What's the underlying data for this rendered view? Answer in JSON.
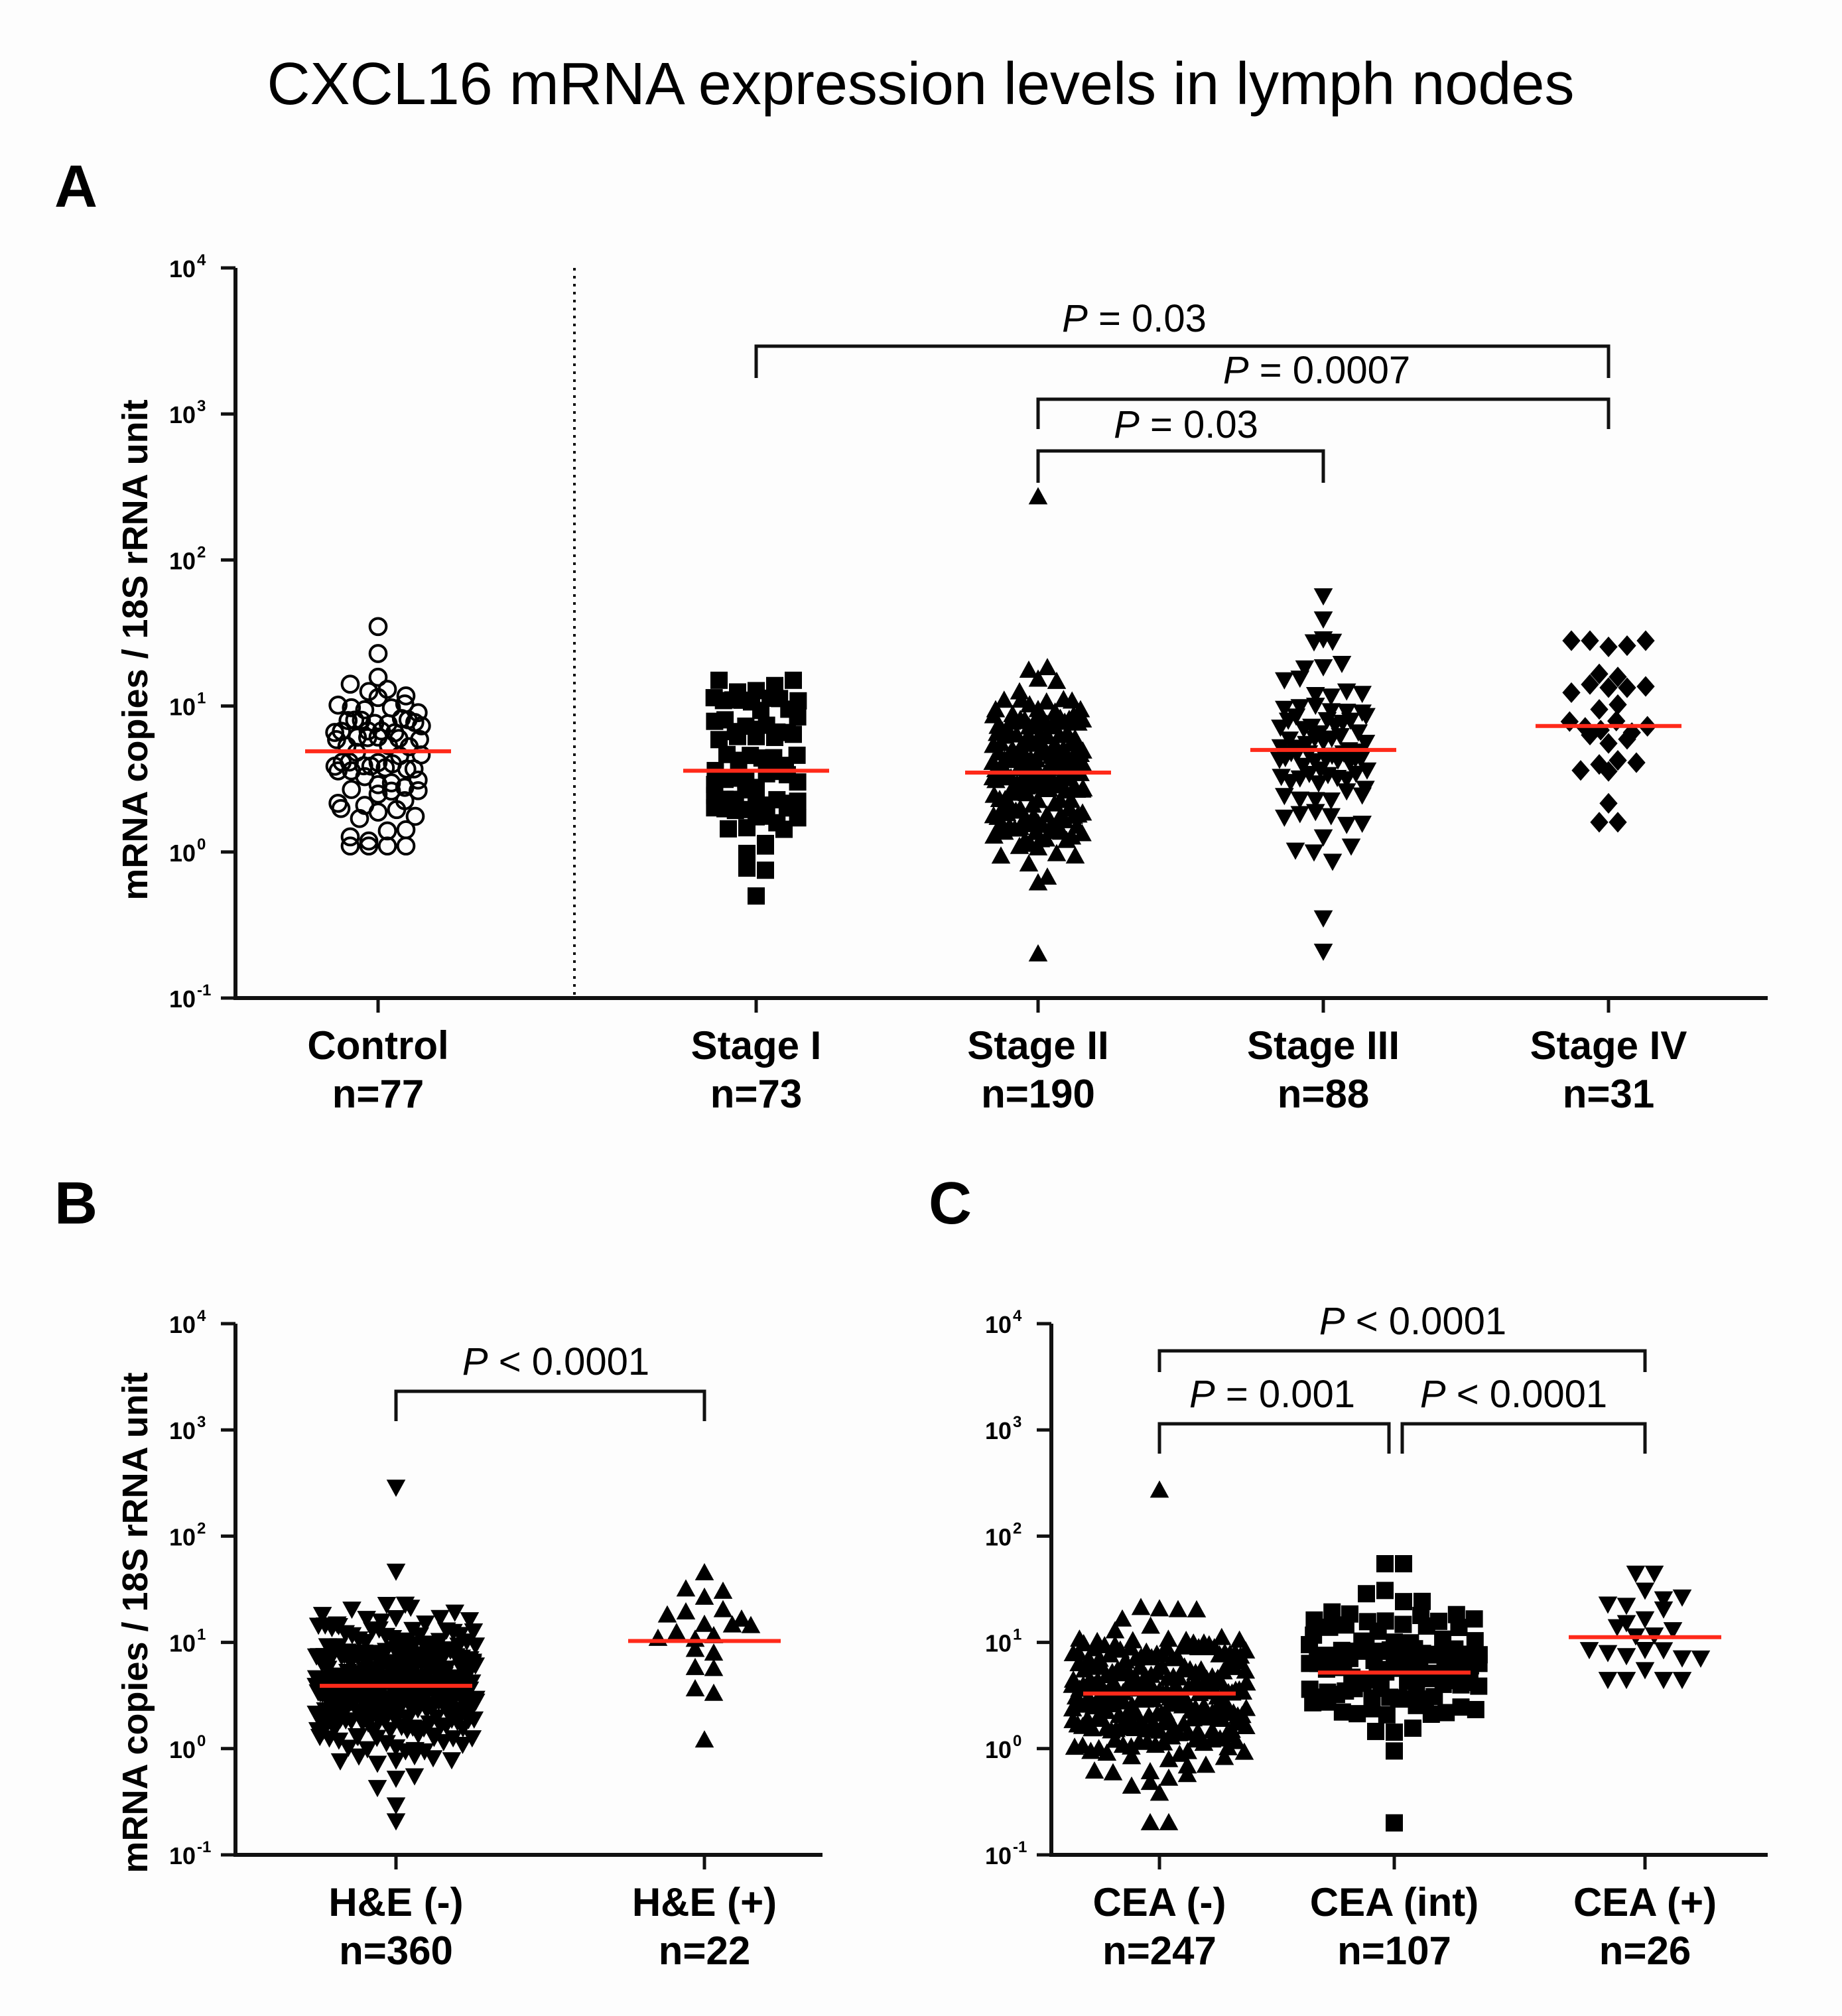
{
  "figure": {
    "title": "CXCL16 mRNA expression levels in lymph nodes"
  },
  "panels": {
    "A": {
      "letter": "A",
      "ylabel": "mRNA copies / 18S rRNA unit",
      "yticks": [
        "10",
        "10",
        "10",
        "10",
        "10",
        "10"
      ],
      "yexps": [
        "4",
        "3",
        "2",
        "1",
        "0",
        "-1"
      ],
      "categories": [
        {
          "name": "Control",
          "n": "n=77"
        },
        {
          "name": "Stage I",
          "n": "n=73"
        },
        {
          "name": "Stage II",
          "n": "n=190"
        },
        {
          "name": "Stage III",
          "n": "n=88"
        },
        {
          "name": "Stage IV",
          "n": "n=31"
        }
      ],
      "pvalues": [
        {
          "label": "P",
          "text": " = 0.03"
        },
        {
          "label": "P",
          "text": " = 0.0007"
        },
        {
          "label": "P",
          "text": " = 0.03"
        }
      ]
    },
    "B": {
      "letter": "B",
      "ylabel": "mRNA copies / 18S rRNA unit",
      "yticks": [
        "10",
        "10",
        "10",
        "10",
        "10",
        "10"
      ],
      "yexps": [
        "4",
        "3",
        "2",
        "1",
        "0",
        "-1"
      ],
      "categories": [
        {
          "name": "H&E (-)",
          "n": "n=360"
        },
        {
          "name": "H&E (+)",
          "n": "n=22"
        }
      ],
      "pvalues": [
        {
          "label": "P",
          "text": " < 0.0001"
        }
      ]
    },
    "C": {
      "letter": "C",
      "yticks": [
        "10",
        "10",
        "10",
        "10",
        "10",
        "10"
      ],
      "yexps": [
        "4",
        "3",
        "2",
        "1",
        "0",
        "-1"
      ],
      "categories": [
        {
          "name": "CEA (-)",
          "n": "n=247"
        },
        {
          "name": "CEA (int)",
          "n": "n=107"
        },
        {
          "name": "CEA (+)",
          "n": "n=26"
        }
      ],
      "pvalues": [
        {
          "label": "P",
          "text": " < 0.0001"
        },
        {
          "label": "P",
          "text": " = 0.001"
        },
        {
          "label": "P",
          "text": " < 0.0001"
        }
      ]
    }
  },
  "colors": {
    "median_line": "#ff2a1a",
    "markers": "#000000"
  },
  "chart_data": [
    {
      "panel": "A",
      "type": "scatter",
      "y_scale": "log10",
      "ylim": [
        0.1,
        10000
      ],
      "ylabel": "mRNA copies / 18S rRNA unit",
      "categories": [
        "Control",
        "Stage I",
        "Stage II",
        "Stage III",
        "Stage IV"
      ],
      "series": [
        {
          "category": "Control",
          "n": 77,
          "marker": "open-circle",
          "median": 4.9,
          "min": 1.1,
          "max": 35
        },
        {
          "category": "Stage I",
          "n": 73,
          "marker": "square",
          "median": 3.6,
          "min": 0.5,
          "max": 15
        },
        {
          "category": "Stage II",
          "n": 190,
          "marker": "triangle-up",
          "median": 3.5,
          "min": 0.2,
          "max": 270
        },
        {
          "category": "Stage III",
          "n": 88,
          "marker": "triangle-down",
          "median": 5.0,
          "min": 0.21,
          "max": 57
        },
        {
          "category": "Stage IV",
          "n": 31,
          "marker": "diamond",
          "median": 7.3,
          "min": 1.6,
          "max": 28
        }
      ],
      "comparisons": [
        {
          "from": "Stage I",
          "to": "Stage IV",
          "p": "P = 0.03"
        },
        {
          "from": "Stage II",
          "to": "Stage IV",
          "p": "P = 0.0007"
        },
        {
          "from": "Stage II",
          "to": "Stage III",
          "p": "P = 0.03"
        }
      ]
    },
    {
      "panel": "B",
      "type": "scatter",
      "y_scale": "log10",
      "ylim": [
        0.1,
        10000
      ],
      "ylabel": "mRNA copies / 18S rRNA unit",
      "categories": [
        "H&E (-)",
        "H&E (+)"
      ],
      "series": [
        {
          "category": "H&E (-)",
          "n": 360,
          "marker": "triangle-down",
          "median": 3.9,
          "min": 0.21,
          "max": 290
        },
        {
          "category": "H&E (+)",
          "n": 22,
          "marker": "triangle-up",
          "median": 10.3,
          "min": 1.2,
          "max": 45
        }
      ],
      "comparisons": [
        {
          "from": "H&E (-)",
          "to": "H&E (+)",
          "p": "P < 0.0001"
        }
      ]
    },
    {
      "panel": "C",
      "type": "scatter",
      "y_scale": "log10",
      "ylim": [
        0.1,
        10000
      ],
      "categories": [
        "CEA (-)",
        "CEA (int)",
        "CEA (+)"
      ],
      "series": [
        {
          "category": "CEA (-)",
          "n": 247,
          "marker": "triangle-up",
          "median": 3.3,
          "min": 0.2,
          "max": 270
        },
        {
          "category": "CEA (int)",
          "n": 107,
          "marker": "square",
          "median": 5.2,
          "min": 0.2,
          "max": 55
        },
        {
          "category": "CEA (+)",
          "n": 26,
          "marker": "triangle-down",
          "median": 11.2,
          "min": 4.5,
          "max": 45
        }
      ],
      "comparisons": [
        {
          "from": "CEA (-)",
          "to": "CEA (+)",
          "p": "P < 0.0001"
        },
        {
          "from": "CEA (-)",
          "to": "CEA (int)",
          "p": "P = 0.001"
        },
        {
          "from": "CEA (int)",
          "to": "CEA (+)",
          "p": "P < 0.0001"
        }
      ]
    }
  ]
}
